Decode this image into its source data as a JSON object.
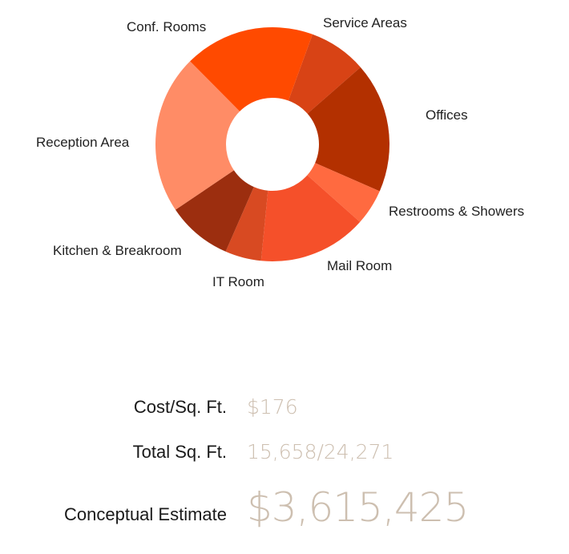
{
  "chart_data": {
    "type": "pie",
    "variant": "donut",
    "title": "",
    "slices": [
      {
        "label": "Service Areas",
        "value": 8,
        "color": "#d84315"
      },
      {
        "label": "Offices",
        "value": 18,
        "color": "#b33000"
      },
      {
        "label": "Restrooms & Showers",
        "value": 5,
        "color": "#ff6a40"
      },
      {
        "label": "Mail Room",
        "value": 15,
        "color": "#f5502a"
      },
      {
        "label": "IT Room",
        "value": 5,
        "color": "#d84a22"
      },
      {
        "label": "Kitchen & Breakroom",
        "value": 9,
        "color": "#9c2e0f"
      },
      {
        "label": "Reception Area",
        "value": 22,
        "color": "#ff8c66"
      },
      {
        "label": "Conf. Rooms",
        "value": 18,
        "color": "#ff4a00"
      }
    ]
  },
  "summary": {
    "cost_label": "Cost/Sq. Ft.",
    "cost_value": "$176",
    "sqft_label": "Total Sq. Ft.",
    "sqft_value": "15,658/24,271",
    "estimate_label": "Conceptual Estimate",
    "estimate_value": "$3,615,425"
  }
}
